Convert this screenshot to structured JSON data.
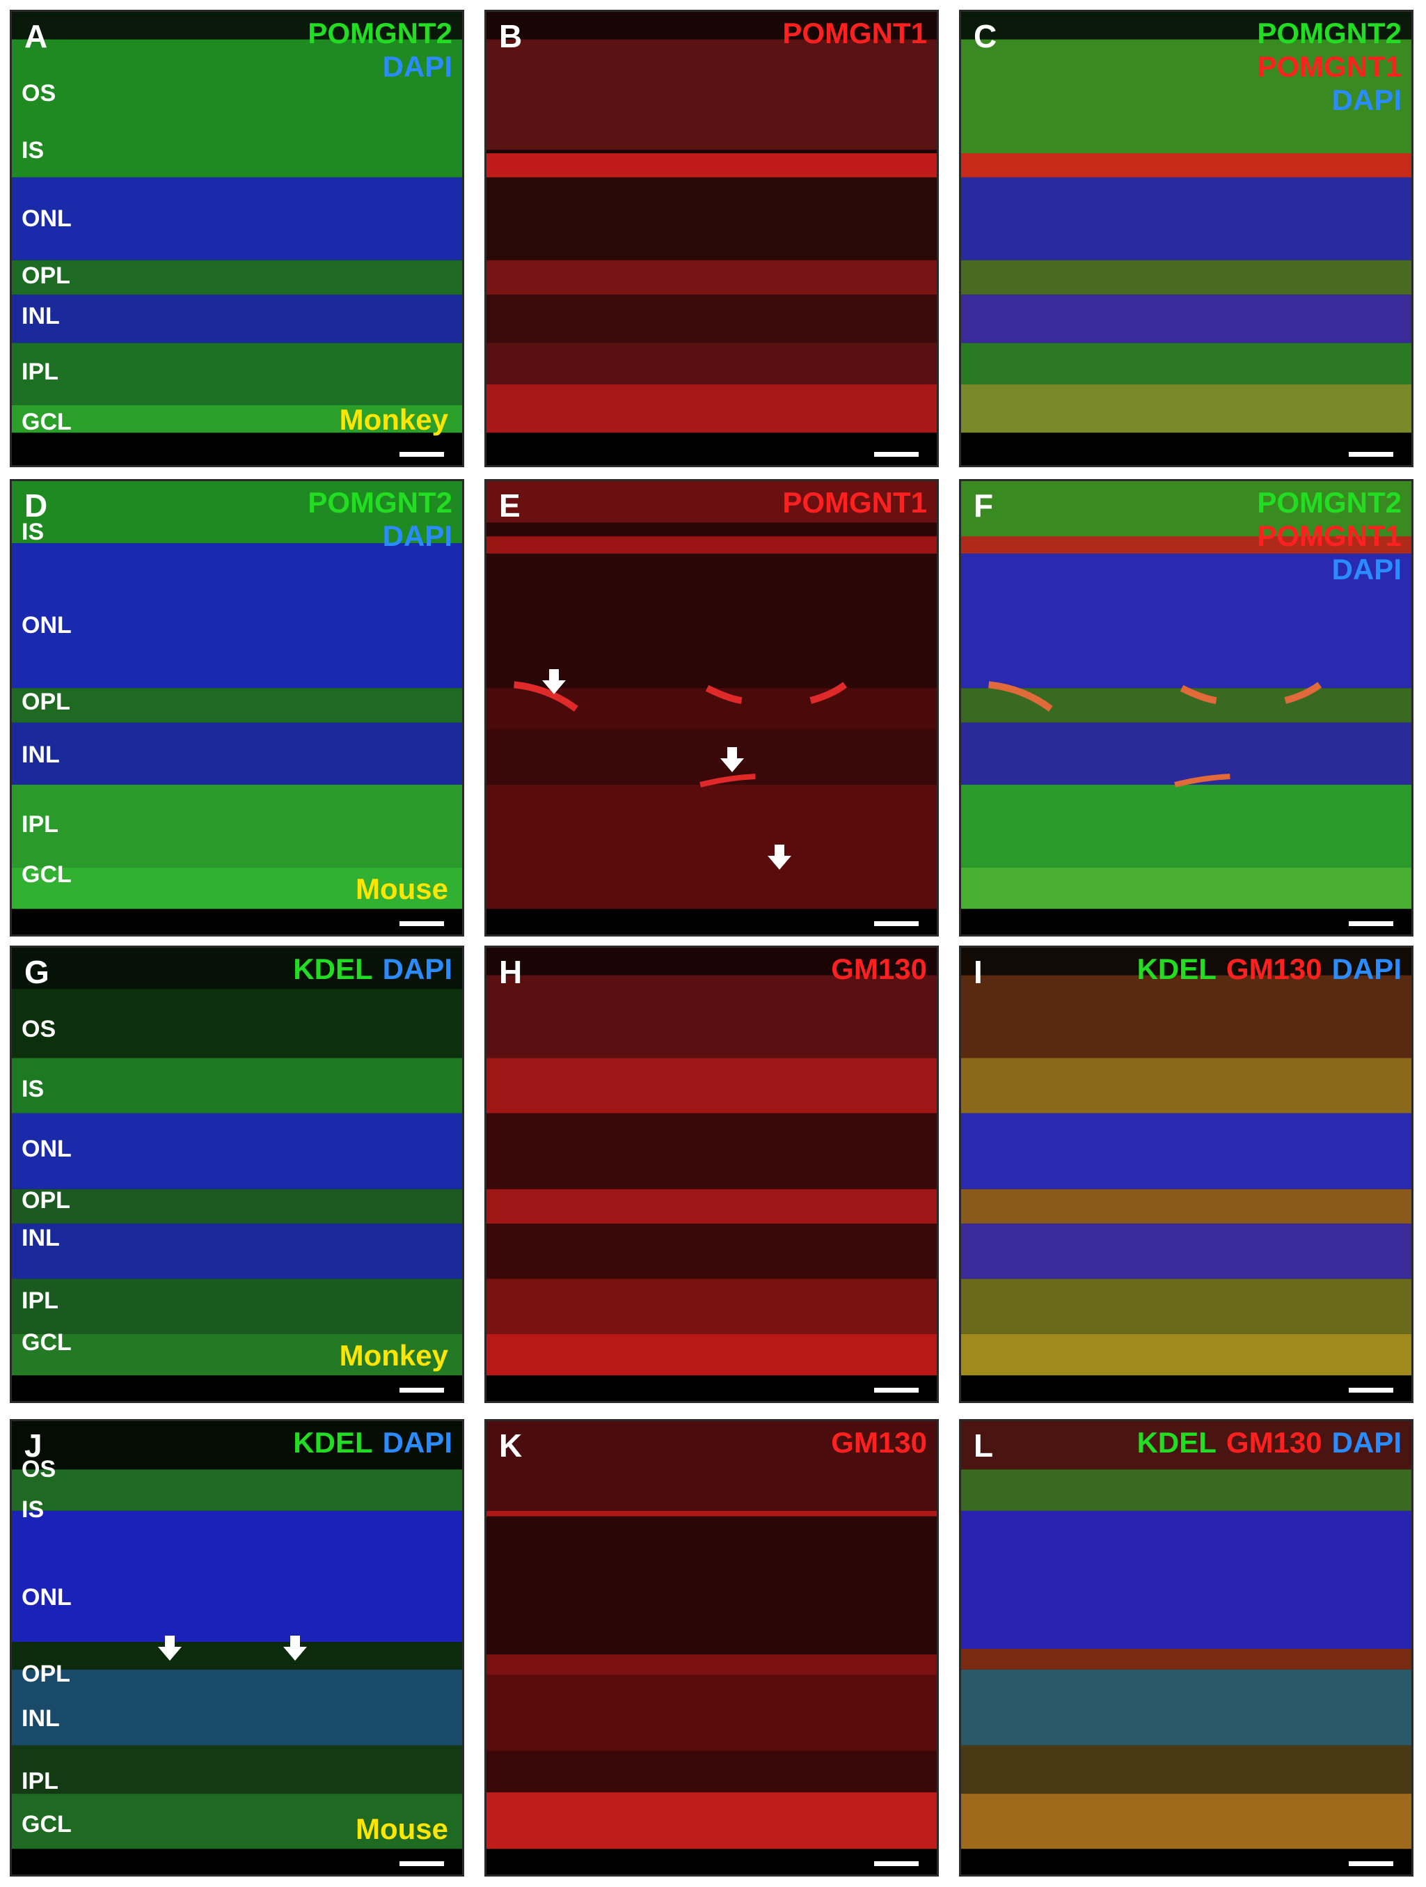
{
  "figure": {
    "panels": [
      {
        "letter": "A",
        "channels": [
          {
            "text": "POMGNT2",
            "color": "green"
          },
          {
            "text": "DAPI",
            "color": "blue"
          }
        ],
        "layers": [
          "OS",
          "IS",
          "ONL",
          "OPL",
          "INL",
          "IPL",
          "GCL"
        ],
        "species": "Monkey",
        "style": "green"
      },
      {
        "letter": "B",
        "channels": [
          {
            "text": "POMGNT1",
            "color": "red"
          }
        ],
        "layers": [],
        "species": "",
        "style": "red"
      },
      {
        "letter": "C",
        "channels": [
          {
            "text": "POMGNT2",
            "color": "green"
          },
          {
            "text": "POMGNT1",
            "color": "red"
          },
          {
            "text": "DAPI",
            "color": "blue"
          }
        ],
        "layers": [],
        "species": "",
        "style": "merge"
      },
      {
        "letter": "D",
        "channels": [
          {
            "text": "POMGNT2",
            "color": "green"
          },
          {
            "text": "DAPI",
            "color": "blue"
          }
        ],
        "layers": [
          "IS",
          "ONL",
          "OPL",
          "INL",
          "IPL",
          "GCL"
        ],
        "species": "Mouse",
        "style": "green"
      },
      {
        "letter": "E",
        "channels": [
          {
            "text": "POMGNT1",
            "color": "red"
          }
        ],
        "layers": [],
        "species": "",
        "style": "red"
      },
      {
        "letter": "F",
        "channels": [
          {
            "text": "POMGNT2",
            "color": "green"
          },
          {
            "text": "POMGNT1",
            "color": "red"
          },
          {
            "text": "DAPI",
            "color": "blue"
          }
        ],
        "layers": [],
        "species": "",
        "style": "merge"
      },
      {
        "letter": "G",
        "channels": [
          {
            "text": "KDEL",
            "color": "green"
          },
          {
            "text": "DAPI",
            "color": "blue"
          }
        ],
        "inline": true,
        "layers": [
          "OS",
          "IS",
          "ONL",
          "OPL",
          "INL",
          "IPL",
          "GCL"
        ],
        "species": "Monkey",
        "style": "green"
      },
      {
        "letter": "H",
        "channels": [
          {
            "text": "GM130",
            "color": "red"
          }
        ],
        "layers": [],
        "species": "",
        "style": "red"
      },
      {
        "letter": "I",
        "channels": [
          {
            "text": "KDEL",
            "color": "green"
          },
          {
            "text": "GM130",
            "color": "red"
          },
          {
            "text": "DAPI",
            "color": "blue"
          }
        ],
        "inline": true,
        "layers": [],
        "species": "",
        "style": "merge"
      },
      {
        "letter": "J",
        "channels": [
          {
            "text": "KDEL",
            "color": "green"
          },
          {
            "text": "DAPI",
            "color": "blue"
          }
        ],
        "inline": true,
        "layers": [
          "OS",
          "IS",
          "ONL",
          "OPL",
          "INL",
          "IPL",
          "GCL"
        ],
        "species": "Mouse",
        "style": "green"
      },
      {
        "letter": "K",
        "channels": [
          {
            "text": "GM130",
            "color": "red"
          }
        ],
        "layers": [],
        "species": "",
        "style": "red"
      },
      {
        "letter": "L",
        "channels": [
          {
            "text": "KDEL",
            "color": "green"
          },
          {
            "text": "GM130",
            "color": "red"
          },
          {
            "text": "DAPI",
            "color": "blue"
          }
        ],
        "inline": true,
        "layers": [],
        "species": "",
        "style": "merge"
      }
    ]
  }
}
